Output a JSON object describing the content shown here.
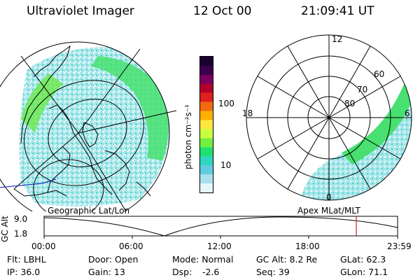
{
  "header": {
    "title": "Ultraviolet Imager",
    "date": "12 Oct 00",
    "time": "21:09:41 UT"
  },
  "colorbar": {
    "unit_label": "photon cm⁻²s⁻¹",
    "tick_labels": [
      "100",
      "10"
    ],
    "colors": [
      "#1a0030",
      "#3a0050",
      "#7a0060",
      "#b4002a",
      "#e0201c",
      "#f06a10",
      "#ffb000",
      "#ffe840",
      "#c8ff40",
      "#70f040",
      "#20e070",
      "#30d6c0",
      "#60cce0",
      "#a8e0ee",
      "#e6f6fa"
    ]
  },
  "polar_plot": {
    "mlt_labels": {
      "top": "12",
      "left": "18",
      "right": "6",
      "bottom": "0"
    },
    "lat_labels": [
      "60",
      "70",
      "80"
    ]
  },
  "timeline": {
    "left_label": "Geographic Lat/Lon",
    "right_label": "Apex MLat/MLT",
    "axis_label": "GC Alt",
    "y_ticks": [
      "9.0",
      "1.8"
    ],
    "x_ticks": [
      "00:00",
      "06:00",
      "12:00",
      "18:00",
      "23:59"
    ],
    "current_time_marker_color": "#d02020"
  },
  "info": {
    "flt": "Flt: LBHL",
    "ip": "IP: 36.0",
    "door": "Door: Open",
    "gain": "Gain: 13",
    "mode": "Mode: Normal",
    "dsp_label": "Dsp:",
    "dsp_value": "-2.6",
    "gc_alt": "GC Alt: 8.2 Re",
    "seq": "Seq: 39",
    "glat": "GLat: 62.3",
    "glon": "GLon: 71.1"
  }
}
